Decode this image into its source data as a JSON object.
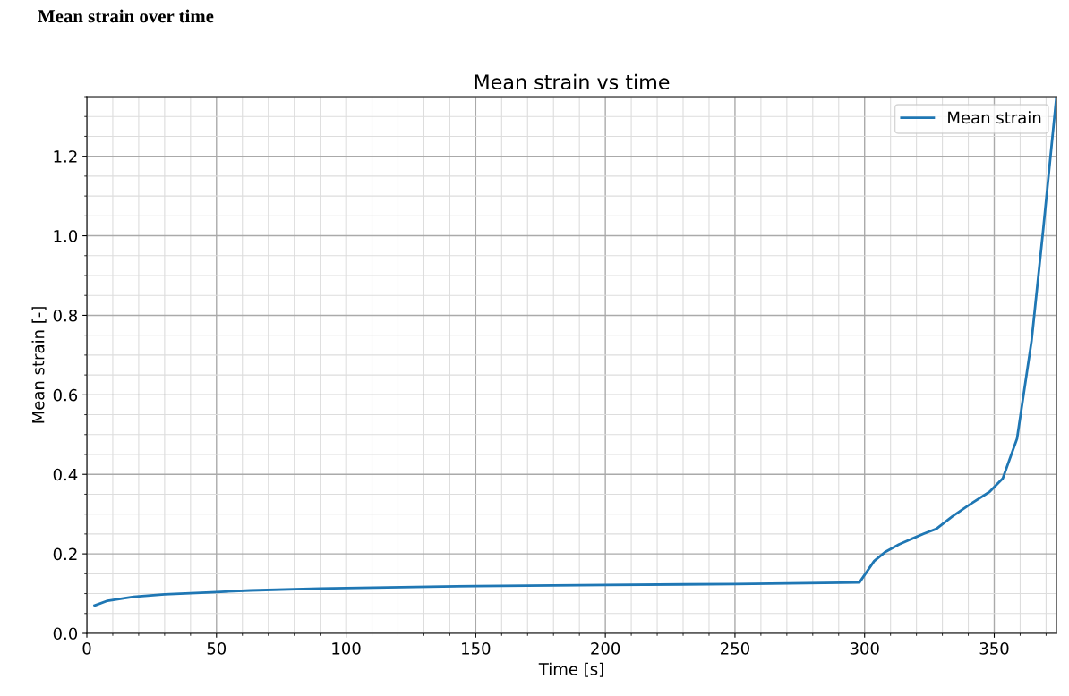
{
  "chart_data": {
    "type": "line",
    "title": "Mean strain over time",
    "subtitle": "Mean strain vs time",
    "xlabel": "Time [s]",
    "ylabel": "Mean strain [-]",
    "x": [
      3,
      8,
      18,
      30,
      50,
      63,
      90,
      100,
      150,
      200,
      250,
      298,
      303.7,
      307.8,
      313.3,
      322.9,
      327.7,
      333.8,
      340.7,
      348.2,
      353.3,
      358.8,
      364.4,
      368.8,
      374
    ],
    "series": [
      {
        "name": "Mean strain",
        "color": "#1f77b4",
        "values": [
          0.07,
          0.082,
          0.092,
          0.098,
          0.104,
          0.108,
          0.113,
          0.114,
          0.119,
          0.122,
          0.124,
          0.128,
          0.182,
          0.204,
          0.224,
          0.251,
          0.263,
          0.294,
          0.325,
          0.356,
          0.39,
          0.49,
          0.736,
          1.01,
          1.35
        ]
      }
    ],
    "xlim": [
      0,
      374
    ],
    "ylim": [
      0,
      1.35
    ],
    "xticks": [
      0,
      50,
      100,
      150,
      200,
      250,
      300,
      350
    ],
    "yticks": [
      {
        "value": 0,
        "label": "0.0"
      },
      {
        "value": 0.2,
        "label": "0.2"
      },
      {
        "value": 0.4,
        "label": "0.4"
      },
      {
        "value": 0.6,
        "label": "0.6"
      },
      {
        "value": 0.8,
        "label": "0.8"
      },
      {
        "value": 1.0,
        "label": "1.0"
      },
      {
        "value": 1.2,
        "label": "1.2"
      }
    ],
    "grid": true,
    "legend": "top right"
  }
}
